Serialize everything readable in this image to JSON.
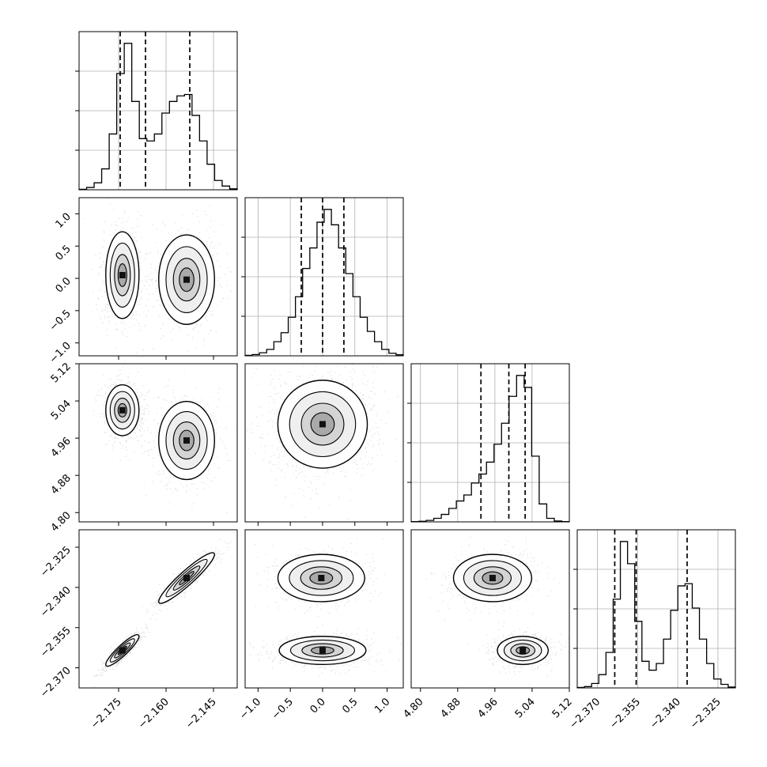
{
  "chart_data": {
    "type": "corner",
    "grid": true,
    "parameters": [
      {
        "ticks": [
          -2.175,
          -2.16,
          -2.145
        ],
        "tick_labels": [
          "−2.175",
          "−2.160",
          "−2.145"
        ],
        "range": [
          -2.1875,
          -2.1375
        ]
      },
      {
        "ticks": [
          -1.0,
          -0.5,
          0.0,
          0.5,
          1.0
        ],
        "tick_labels": [
          "−1.0",
          "−0.5",
          "0.0",
          "0.5",
          "1.0"
        ],
        "range": [
          -1.2,
          1.25
        ]
      },
      {
        "ticks": [
          4.8,
          4.88,
          4.96,
          5.04,
          5.12
        ],
        "tick_labels": [
          "4.80",
          "4.88",
          "4.96",
          "5.04",
          "5.12"
        ],
        "range": [
          4.78,
          5.12
        ]
      },
      {
        "ticks": [
          -2.325,
          -2.34,
          -2.355,
          -2.37
        ],
        "tick_labels": [
          "−2.325",
          "−2.340",
          "−2.355",
          "−2.370"
        ],
        "range": [
          -2.3775,
          -2.3185
        ]
      }
    ],
    "quantiles": [
      [
        -2.1745,
        -2.1665,
        -2.1525
      ],
      [
        -0.33,
        0.0,
        0.33
      ],
      [
        4.93,
        4.99,
        5.025
      ],
      [
        -2.3635,
        -2.3555,
        -2.3365
      ]
    ],
    "histograms": [
      {
        "bins": [
          -2.1875,
          -2.1375
        ],
        "counts": [
          1,
          5,
          15,
          45,
          120,
          250,
          315,
          190,
          110,
          105,
          120,
          165,
          190,
          202,
          205,
          160,
          105,
          55,
          20,
          8,
          2
        ]
      },
      {
        "bins": [
          -1.2,
          1.25
        ],
        "counts": [
          2,
          5,
          12,
          25,
          55,
          90,
          150,
          230,
          340,
          420,
          520,
          570,
          510,
          420,
          320,
          230,
          150,
          95,
          55,
          25,
          10,
          4
        ]
      },
      {
        "bins": [
          4.78,
          5.12
        ],
        "counts": [
          1,
          2,
          5,
          12,
          25,
          45,
          70,
          90,
          130,
          160,
          200,
          260,
          330,
          420,
          490,
          450,
          220,
          60,
          12,
          3,
          1
        ]
      },
      {
        "bins": [
          -2.3775,
          -2.3185
        ],
        "counts": [
          1,
          3,
          10,
          30,
          80,
          200,
          330,
          280,
          150,
          60,
          40,
          55,
          110,
          175,
          230,
          235,
          180,
          110,
          55,
          20,
          8,
          2
        ]
      }
    ],
    "modes": [
      [
        {
          "x": -2.1738,
          "y": 0.05,
          "sx": 0.0025,
          "sy": 0.32,
          "w": 0.55
        },
        {
          "x": -2.1535,
          "y": -0.02,
          "sx": 0.0042,
          "sy": 0.33,
          "w": 0.45
        }
      ],
      [
        {
          "x": -2.1738,
          "y": 5.02,
          "sx": 0.0025,
          "sy": 0.026,
          "w": 0.55
        },
        {
          "x": -2.1535,
          "y": 4.955,
          "sx": 0.0042,
          "sy": 0.04,
          "w": 0.45
        }
      ],
      [
        {
          "x": 0.0,
          "y": 4.99,
          "sx": 0.33,
          "sy": 0.045,
          "w": 1.0
        }
      ],
      [
        {
          "x": -2.1738,
          "y": -2.3635,
          "sx": 0.0025,
          "sy": 0.0028,
          "w": 0.55,
          "rho": 0.9
        },
        {
          "x": -2.1535,
          "y": -2.3365,
          "sx": 0.0042,
          "sy": 0.0045,
          "w": 0.45,
          "rho": 0.93
        }
      ],
      [
        {
          "x": 0.0,
          "y": -2.3635,
          "sx": 0.32,
          "sy": 0.0025,
          "w": 0.55
        },
        {
          "x": -0.02,
          "y": -2.3365,
          "sx": 0.32,
          "sy": 0.0042,
          "w": 0.45
        }
      ],
      [
        {
          "x": 5.02,
          "y": -2.3635,
          "sx": 0.026,
          "sy": 0.0025,
          "w": 0.55
        },
        {
          "x": 4.955,
          "y": -2.3365,
          "sx": 0.04,
          "sy": 0.0042,
          "w": 0.45
        }
      ]
    ]
  }
}
